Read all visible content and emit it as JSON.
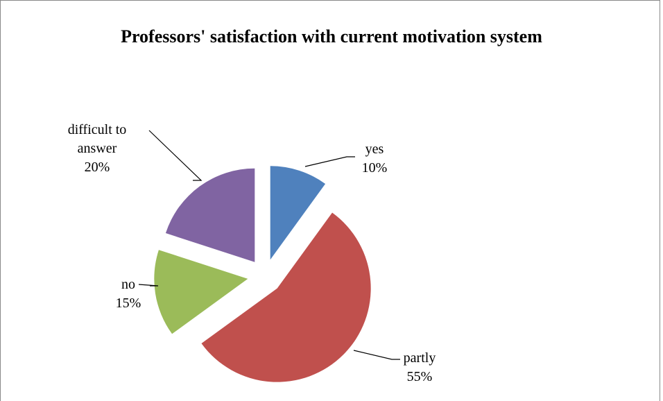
{
  "chart_data": {
    "type": "pie",
    "title": "Professors' satisfaction with current motivation system",
    "categories": [
      "yes",
      "partly",
      "no",
      "difficult to answer"
    ],
    "values": [
      10,
      55,
      15,
      20
    ],
    "value_labels": [
      "10%",
      "55%",
      "15%",
      "20%"
    ],
    "colors": [
      "#4f81bd",
      "#c0504d",
      "#9bbb59",
      "#8064a2"
    ],
    "exploded": true
  }
}
